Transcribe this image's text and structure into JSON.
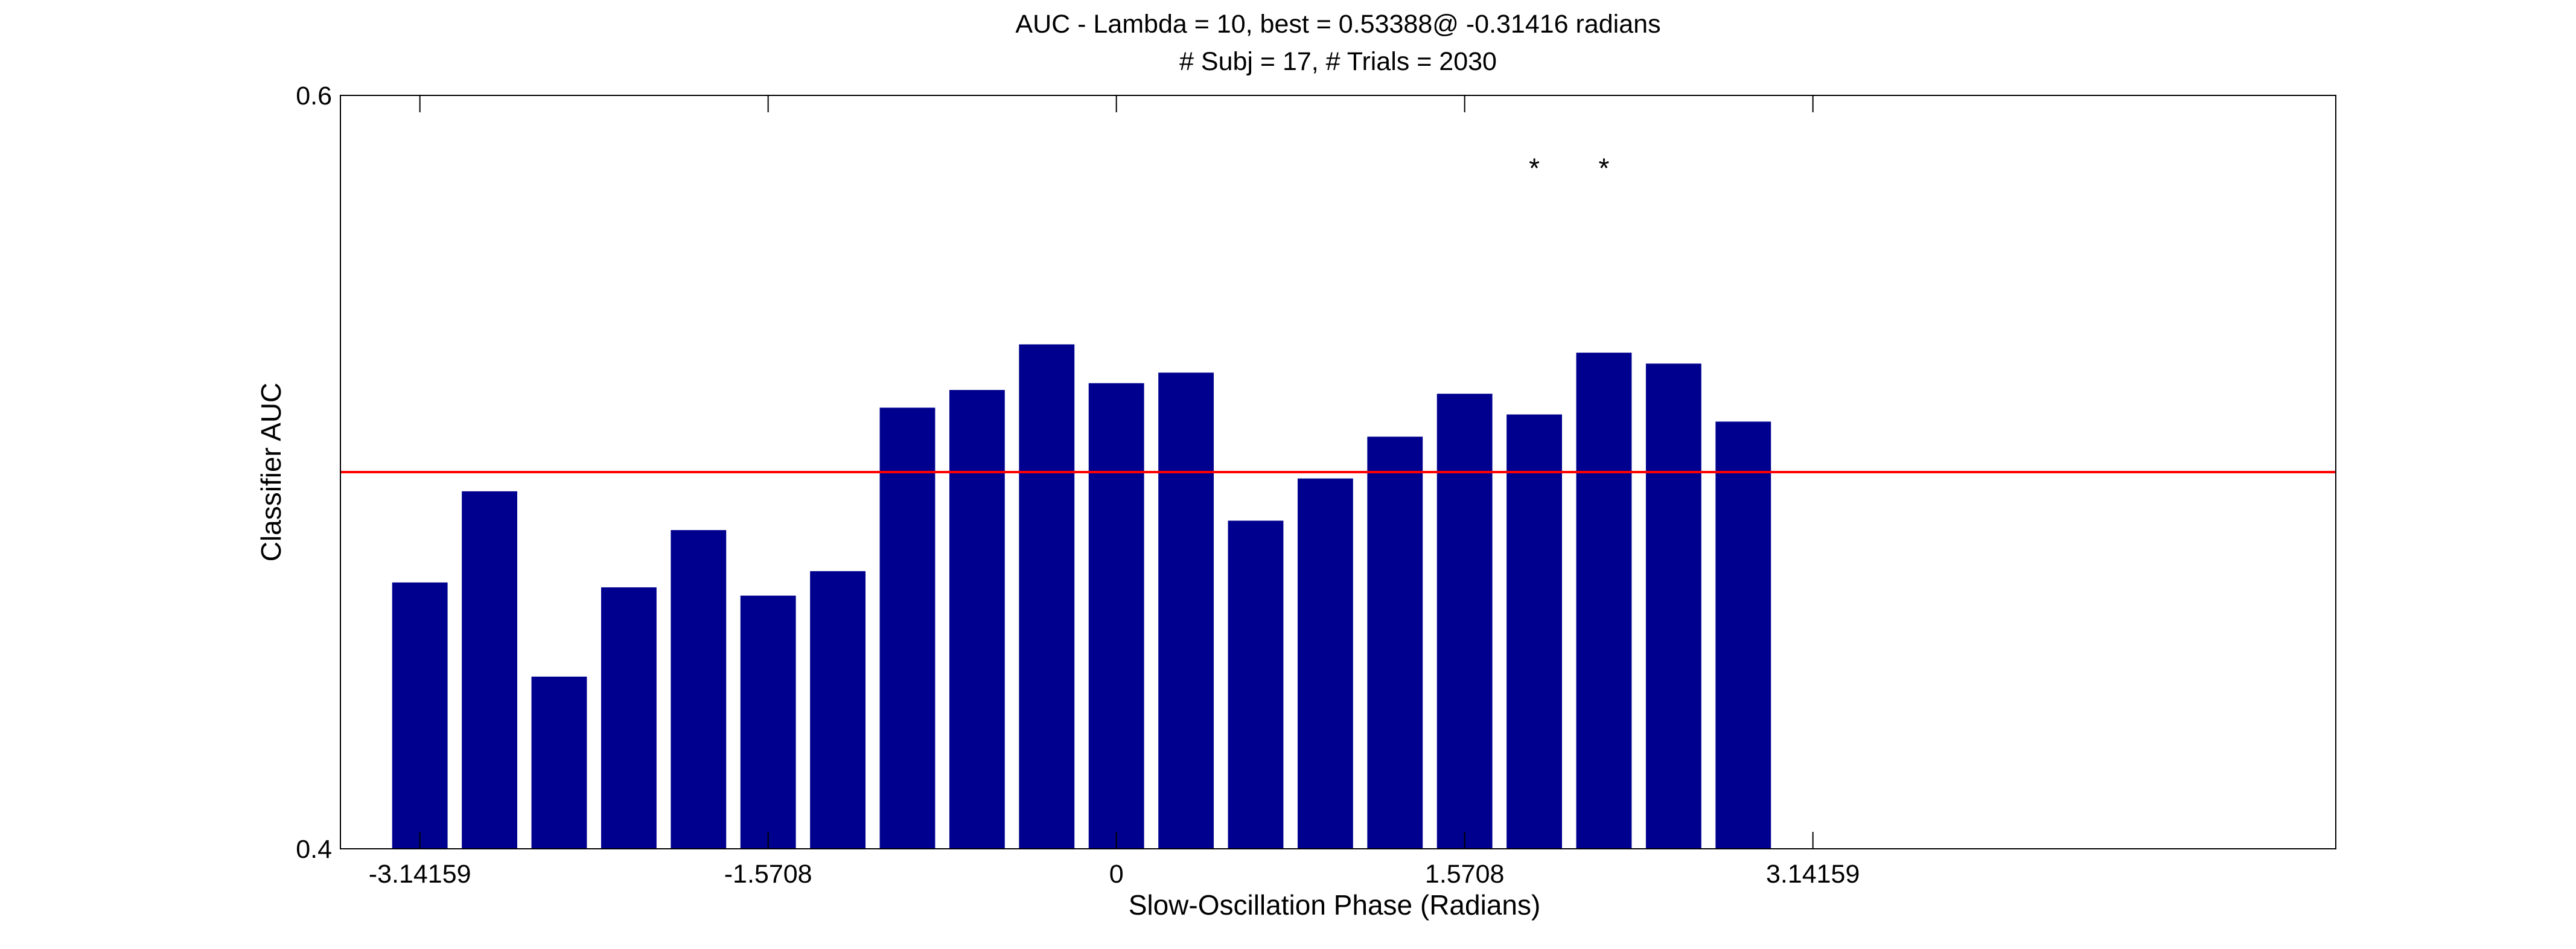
{
  "chart_data": {
    "type": "bar",
    "title": "AUC - Lambda = 10, best = 0.53388@ -0.31416 radians",
    "subtitle": "# Subj = 17, # Trials = 2030",
    "xlabel": "Slow-Oscillation Phase (Radians)",
    "ylabel": "Classifier AUC",
    "xlim": [
      -3.5,
      5.5
    ],
    "ylim": [
      0.4,
      0.6
    ],
    "x_ticks": [
      {
        "value": -3.14159,
        "label": "-3.14159"
      },
      {
        "value": -1.5708,
        "label": "-1.5708"
      },
      {
        "value": 0,
        "label": "0"
      },
      {
        "value": 1.5708,
        "label": "1.5708"
      },
      {
        "value": 3.14159,
        "label": "3.14159"
      }
    ],
    "y_ticks": [
      {
        "value": 0.4,
        "label": "0.4"
      },
      {
        "value": 0.6,
        "label": "0.6"
      }
    ],
    "bar_width": 0.25,
    "bar_color": "#00008F",
    "x": [
      -3.14159,
      -2.82743,
      -2.51327,
      -2.19911,
      -1.88496,
      -1.5708,
      -1.25664,
      -0.94248,
      -0.62832,
      -0.31416,
      0,
      0.31416,
      0.62832,
      0.94248,
      1.25664,
      1.5708,
      1.88496,
      2.19911,
      2.51327,
      2.82743
    ],
    "values": [
      0.4707,
      0.4949,
      0.4457,
      0.4694,
      0.4846,
      0.4672,
      0.4737,
      0.5171,
      0.5218,
      0.5339,
      0.5236,
      0.5264,
      0.4871,
      0.4983,
      0.5094,
      0.5208,
      0.5153,
      0.5317,
      0.5288,
      0.5134
    ],
    "reference_line": {
      "y": 0.5,
      "color": "#FF0000"
    },
    "annotations": [
      {
        "x": 1.88496,
        "y": 0.581,
        "text": "*"
      },
      {
        "x": 2.19911,
        "y": 0.581,
        "text": "*"
      }
    ],
    "grid": false,
    "legend": "none"
  }
}
